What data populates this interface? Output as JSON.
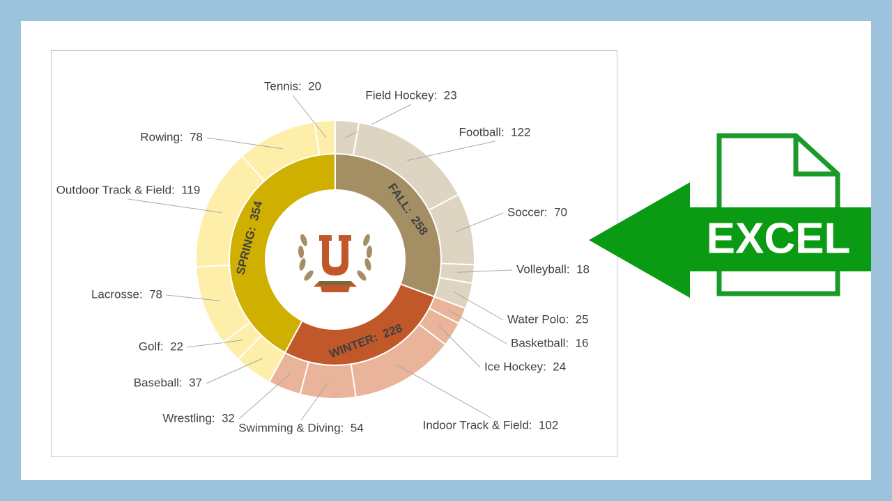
{
  "chart_data": {
    "type": "sunburst",
    "seasons": [
      {
        "label": "FALL:  258",
        "value": 258,
        "color": "#a38f63",
        "child_color": "#ddd5c1",
        "children": [
          {
            "label": "Field Hockey:  23",
            "value": 23
          },
          {
            "label": "Football:  122",
            "value": 122
          },
          {
            "label": "Soccer:  70",
            "value": 70
          },
          {
            "label": "Volleyball:  18",
            "value": 18
          },
          {
            "label": "Water Polo:  25",
            "value": 25
          }
        ]
      },
      {
        "label": "WINTER:  228",
        "value": 228,
        "color": "#c0582a",
        "child_color": "#e9b49a",
        "children": [
          {
            "label": "Basketball:  16",
            "value": 16
          },
          {
            "label": "Ice Hockey:  24",
            "value": 24
          },
          {
            "label": "Indoor Track & Field:  102",
            "value": 102
          },
          {
            "label": "Swimming & Diving:  54",
            "value": 54
          },
          {
            "label": "Wrestling:  32",
            "value": 32
          }
        ]
      },
      {
        "label": "SPRING:  354",
        "value": 354,
        "color": "#cfb000",
        "child_color": "#fdeeaa",
        "children": [
          {
            "label": "Baseball:  37",
            "value": 37
          },
          {
            "label": "Golf:  22",
            "value": 22
          },
          {
            "label": "Lacrosse:  78",
            "value": 78
          },
          {
            "label": "Outdoor Track & Field:  119",
            "value": 119
          },
          {
            "label": "Rowing:  78",
            "value": 78
          },
          {
            "label": "Tennis:  20",
            "value": 20
          }
        ]
      }
    ]
  },
  "banner": {
    "text": "EXCEL"
  }
}
